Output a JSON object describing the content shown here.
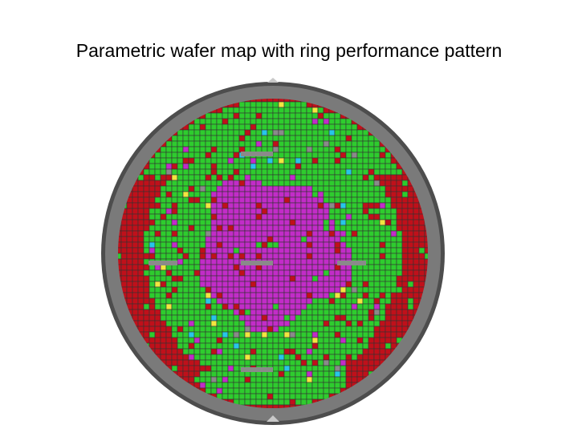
{
  "slide": {
    "title": "Parametric wafer map with ring performance pattern"
  },
  "wafer_map": {
    "colors": {
      "wafer_rim": "#4d4d4d",
      "wafer_edge": "#7a7a7a",
      "fail": "#c0101a",
      "pass": "#2ecc2e",
      "center": "#c22cc8",
      "minor_cyan": "#27c6e8",
      "minor_yellow": "#f2e640",
      "test_site": "#8a8a8a",
      "die_outline": "#333333"
    },
    "zones": [
      "outer-fail-ring",
      "middle-pass-ring",
      "center-magenta-zone"
    ]
  }
}
